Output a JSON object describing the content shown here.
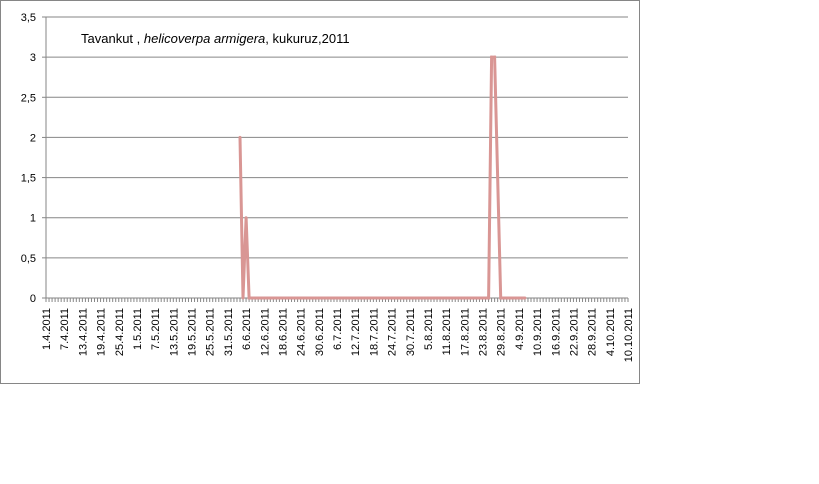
{
  "chart_data": {
    "type": "line",
    "title_parts": [
      {
        "text": "Tavankut , ",
        "italic": false
      },
      {
        "text": "helicoverpa armigera",
        "italic": true
      },
      {
        "text": ", kukuruz,2011",
        "italic": false
      }
    ],
    "xlabel": "",
    "ylabel": "",
    "ylim": [
      0,
      3.5
    ],
    "yticks": [
      "0",
      "0,5",
      "1",
      "1,5",
      "2",
      "2,5",
      "3",
      "3,5"
    ],
    "grid": true,
    "legend": "none",
    "x_start": "1.4.2011",
    "x_end": "10.10.2011",
    "xtick_labels": [
      "1.4.2011",
      "7.4.2011",
      "13.4.2011",
      "19.4.2011",
      "25.4.2011",
      "1.5.2011",
      "7.5.2011",
      "13.5.2011",
      "19.5.2011",
      "25.5.2011",
      "31.5.2011",
      "6.6.2011",
      "12.6.2011",
      "18.6.2011",
      "24.6.2011",
      "30.6.2011",
      "6.7.2011",
      "12.7.2011",
      "18.7.2011",
      "24.7.2011",
      "30.7.2011",
      "5.8.2011",
      "11.8.2011",
      "17.8.2011",
      "23.8.2011",
      "29.8.2011",
      "4.9.2011",
      "10.9.2011",
      "16.9.2011",
      "22.9.2011",
      "28.9.2011",
      "4.10.2011",
      "10.10.2011"
    ],
    "series": [
      {
        "color": "#d99694",
        "points": [
          {
            "x": "4.6.2011",
            "y": 2
          },
          {
            "x": "5.6.2011",
            "y": 0
          },
          {
            "x": "6.6.2011",
            "y": 1
          },
          {
            "x": "7.6.2011",
            "y": 0
          },
          {
            "x": "8.7.2011",
            "y": 0
          },
          {
            "x": "20.7.2011",
            "y": 0
          },
          {
            "x": "28.7.2011",
            "y": 0
          },
          {
            "x": "5.8.2011",
            "y": 0
          },
          {
            "x": "14.8.2011",
            "y": 0
          },
          {
            "x": "25.8.2011",
            "y": 0
          },
          {
            "x": "26.8.2011",
            "y": 3
          },
          {
            "x": "27.8.2011",
            "y": 3
          },
          {
            "x": "29.8.2011",
            "y": 0
          },
          {
            "x": "6.9.2011",
            "y": 0
          }
        ]
      }
    ]
  }
}
